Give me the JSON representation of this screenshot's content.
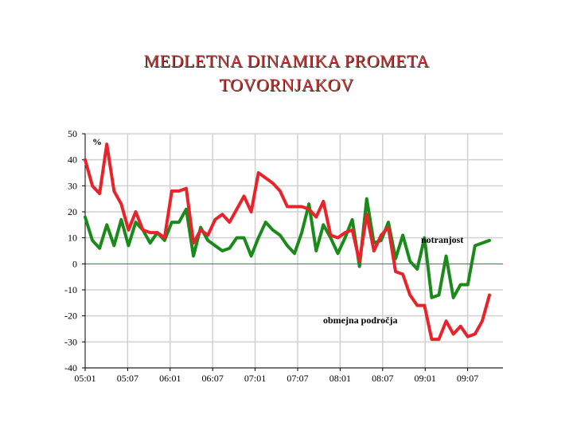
{
  "title_line1": "MEDLETNA DINAMIKA PROMETA",
  "title_line2": "TOVORNJAKOV",
  "colors": {
    "title": "#c8312b",
    "green": "#1a8a1a",
    "red": "#e8232a",
    "grid": "#d0d0d0"
  },
  "chart_data": {
    "type": "line",
    "title": "MEDLETNA DINAMIKA PROMETA TOVORNJAKOV",
    "ylabel": "%",
    "ylim": [
      -40,
      50
    ],
    "yticks": [
      50,
      40,
      30,
      20,
      10,
      0,
      -10,
      -20,
      -30,
      -40
    ],
    "xticks": [
      "05:01",
      "05:07",
      "06:01",
      "06:07",
      "07:01",
      "07:07",
      "08:01",
      "08:07",
      "09:01",
      "09:07"
    ],
    "xlim": [
      0,
      56
    ],
    "grid": true,
    "series": [
      {
        "name": "notranjost",
        "color": "#1a8a1a",
        "x": [
          0,
          1,
          2,
          3,
          4,
          5,
          6,
          7,
          8,
          9,
          10,
          11,
          12,
          13,
          14,
          15,
          16,
          17,
          18,
          19,
          20,
          21,
          22,
          23,
          24,
          25,
          26,
          27,
          28,
          29,
          30,
          31,
          32,
          33,
          34,
          35,
          36,
          37,
          38,
          39,
          40,
          41,
          42,
          43,
          44,
          45,
          46,
          47,
          48,
          49,
          50,
          51,
          52,
          53,
          54,
          55,
          56
        ],
        "values": [
          18,
          9,
          6,
          15,
          7,
          17,
          7,
          16,
          13,
          8,
          12,
          9,
          16,
          16,
          21,
          3,
          14,
          9,
          7,
          5,
          6,
          10,
          10,
          3,
          10,
          16,
          13,
          11,
          7,
          4,
          12,
          23,
          5,
          15,
          10,
          4,
          10,
          17,
          -1,
          25,
          8,
          9,
          16,
          2,
          11,
          1,
          -2,
          10,
          -13,
          -12,
          3,
          -13,
          -8,
          -8,
          7,
          8,
          9
        ]
      },
      {
        "name": "obmejna področja",
        "color": "#e8232a",
        "x": [
          0,
          1,
          2,
          3,
          4,
          5,
          6,
          7,
          8,
          9,
          10,
          11,
          12,
          13,
          14,
          15,
          16,
          17,
          18,
          19,
          20,
          21,
          22,
          23,
          24,
          25,
          26,
          27,
          28,
          29,
          30,
          31,
          32,
          33,
          34,
          35,
          36,
          37,
          38,
          39,
          40,
          41,
          42,
          43,
          44,
          45,
          46,
          47,
          48,
          49,
          50,
          51,
          52,
          53,
          54,
          55,
          56
        ],
        "values": [
          40,
          30,
          27,
          46,
          28,
          23,
          13,
          20,
          13,
          12,
          12,
          10,
          28,
          28,
          29,
          8,
          13,
          11,
          17,
          19,
          16,
          21,
          26,
          20,
          35,
          33,
          31,
          28,
          22,
          22,
          22,
          21,
          18,
          24,
          11,
          10,
          12,
          13,
          1,
          19,
          5,
          11,
          14,
          -3,
          -4,
          -12,
          -16,
          -16,
          -29,
          -29,
          -22,
          -27,
          -24,
          -28,
          -27,
          -22,
          -12
        ]
      }
    ],
    "annotations": [
      "notranjost",
      "obmejna področja"
    ]
  }
}
